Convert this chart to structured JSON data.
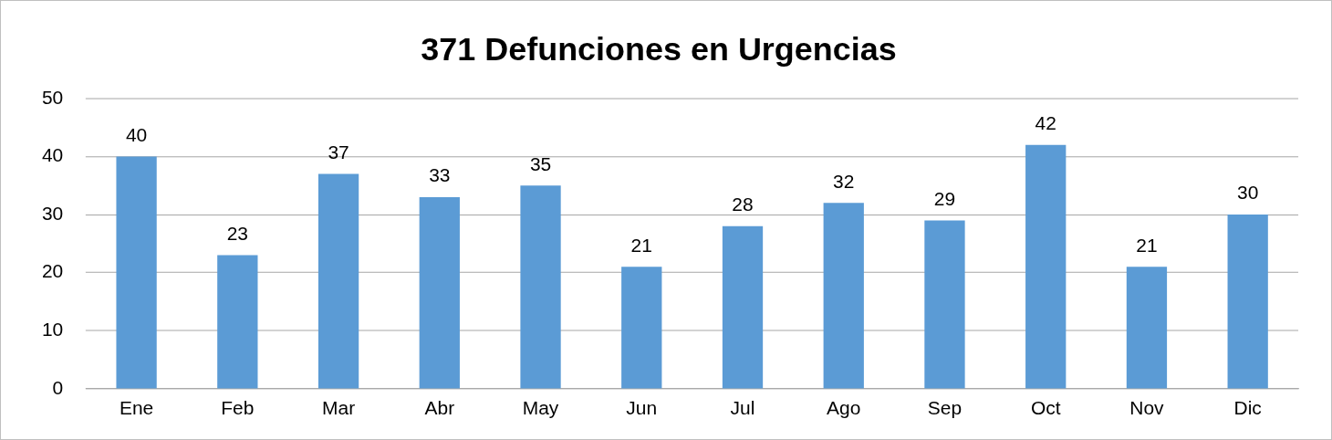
{
  "chart_data": {
    "type": "bar",
    "title": "371 Defunciones en Urgencias",
    "categories": [
      "Ene",
      "Feb",
      "Mar",
      "Abr",
      "May",
      "Jun",
      "Jul",
      "Ago",
      "Sep",
      "Oct",
      "Nov",
      "Dic"
    ],
    "values": [
      40,
      23,
      37,
      33,
      35,
      21,
      28,
      32,
      29,
      42,
      21,
      30
    ],
    "color": "#5b9bd5",
    "ylim": [
      0,
      50
    ],
    "yticks": [
      0,
      10,
      20,
      30,
      40,
      50
    ],
    "grid": "y",
    "data_labels": true,
    "legend": false
  }
}
